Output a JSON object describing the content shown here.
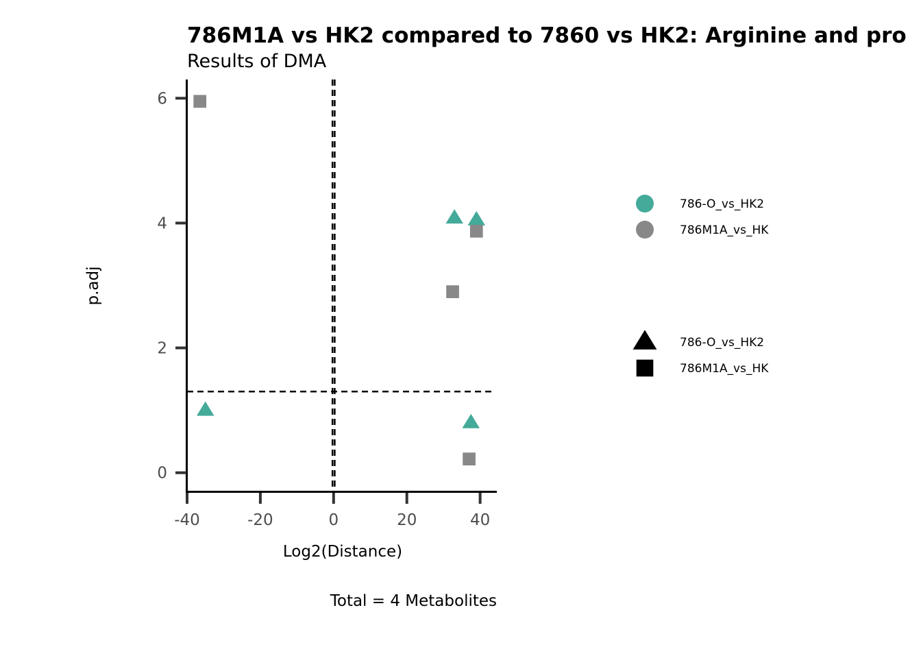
{
  "chart_data": {
    "type": "scatter",
    "title": "786M1A vs HK2 compared to 7860 vs HK2: Arginine and pro",
    "subtitle": "Results of DMA",
    "xlabel": "Log2(Distance)",
    "ylabel": "p.adj",
    "caption": "Total = 4 Metabolites",
    "xlim": [
      -40,
      44
    ],
    "ylim": [
      -0.3,
      6.3
    ],
    "x_ticks": [
      -40,
      -20,
      0,
      20,
      40
    ],
    "y_ticks": [
      0,
      2,
      4,
      6
    ],
    "grid": false,
    "reference_lines": {
      "vertical_x": [
        -0.3,
        0.3
      ],
      "horizontal_y": [
        1.3
      ]
    },
    "series": [
      {
        "name": "786-O_vs_HK2",
        "color": "#44aa99",
        "marker": "triangle",
        "points": [
          {
            "x": -35,
            "y": 1.0
          },
          {
            "x": 33,
            "y": 4.08
          },
          {
            "x": 39,
            "y": 4.05
          },
          {
            "x": 37.5,
            "y": 0.8
          }
        ]
      },
      {
        "name": "786M1A_vs_HK",
        "color": "#888888",
        "marker": "square",
        "points": [
          {
            "x": -36.5,
            "y": 5.95
          },
          {
            "x": 39,
            "y": 3.87
          },
          {
            "x": 32.5,
            "y": 2.9
          },
          {
            "x": 37,
            "y": 0.22
          }
        ]
      }
    ],
    "legend": {
      "placement": "right",
      "color_legend": {
        "entries": [
          {
            "label": "786-O_vs_HK2",
            "color": "#44aa99"
          },
          {
            "label": "786M1A_vs_HK",
            "color": "#888888"
          }
        ]
      },
      "shape_legend": {
        "entries": [
          {
            "label": "786-O_vs_HK2",
            "shape": "triangle"
          },
          {
            "label": "786M1A_vs_HK",
            "shape": "square"
          }
        ]
      }
    }
  }
}
